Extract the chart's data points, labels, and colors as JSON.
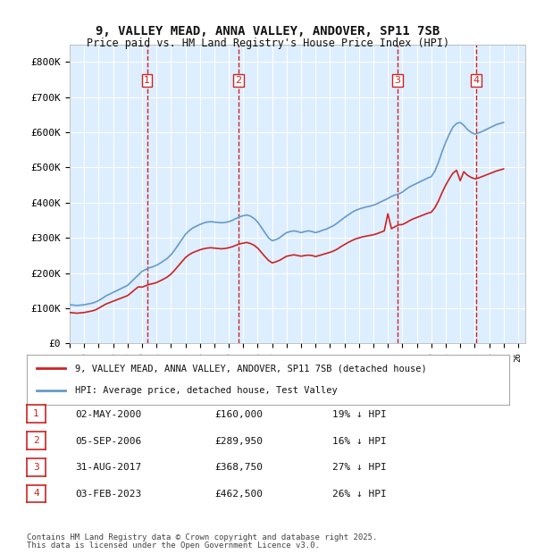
{
  "title": "9, VALLEY MEAD, ANNA VALLEY, ANDOVER, SP11 7SB",
  "subtitle": "Price paid vs. HM Land Registry's House Price Index (HPI)",
  "ylabel": "",
  "background_color": "#ffffff",
  "plot_bg_color": "#ddeeff",
  "grid_color": "#ffffff",
  "hpi_color": "#6699cc",
  "price_color": "#cc2222",
  "ylim": [
    0,
    850000
  ],
  "yticks": [
    0,
    100000,
    200000,
    300000,
    400000,
    500000,
    600000,
    700000,
    800000
  ],
  "ytick_labels": [
    "£0",
    "£100K",
    "£200K",
    "£300K",
    "£400K",
    "£500K",
    "£600K",
    "£700K",
    "£800K"
  ],
  "xlim_start": 1995.0,
  "xlim_end": 2026.5,
  "transactions": [
    {
      "num": 1,
      "date": "02-MAY-2000",
      "price": 160000,
      "pct": "19%",
      "x": 2000.35
    },
    {
      "num": 2,
      "date": "05-SEP-2006",
      "price": 289950,
      "pct": "16%",
      "x": 2006.67
    },
    {
      "num": 3,
      "date": "31-AUG-2017",
      "price": 368750,
      "pct": "27%",
      "x": 2017.66
    },
    {
      "num": 4,
      "date": "03-FEB-2023",
      "price": 462500,
      "pct": "26%",
      "x": 2023.09
    }
  ],
  "legend_line1": "9, VALLEY MEAD, ANNA VALLEY, ANDOVER, SP11 7SB (detached house)",
  "legend_line2": "HPI: Average price, detached house, Test Valley",
  "footer1": "Contains HM Land Registry data © Crown copyright and database right 2025.",
  "footer2": "This data is licensed under the Open Government Licence v3.0.",
  "hpi_years": [
    1995.0,
    1995.25,
    1995.5,
    1995.75,
    1996.0,
    1996.25,
    1996.5,
    1996.75,
    1997.0,
    1997.25,
    1997.5,
    1997.75,
    1998.0,
    1998.25,
    1998.5,
    1998.75,
    1999.0,
    1999.25,
    1999.5,
    1999.75,
    2000.0,
    2000.25,
    2000.5,
    2000.75,
    2001.0,
    2001.25,
    2001.5,
    2001.75,
    2002.0,
    2002.25,
    2002.5,
    2002.75,
    2003.0,
    2003.25,
    2003.5,
    2003.75,
    2004.0,
    2004.25,
    2004.5,
    2004.75,
    2005.0,
    2005.25,
    2005.5,
    2005.75,
    2006.0,
    2006.25,
    2006.5,
    2006.75,
    2007.0,
    2007.25,
    2007.5,
    2007.75,
    2008.0,
    2008.25,
    2008.5,
    2008.75,
    2009.0,
    2009.25,
    2009.5,
    2009.75,
    2010.0,
    2010.25,
    2010.5,
    2010.75,
    2011.0,
    2011.25,
    2011.5,
    2011.75,
    2012.0,
    2012.25,
    2012.5,
    2012.75,
    2013.0,
    2013.25,
    2013.5,
    2013.75,
    2014.0,
    2014.25,
    2014.5,
    2014.75,
    2015.0,
    2015.25,
    2015.5,
    2015.75,
    2016.0,
    2016.25,
    2016.5,
    2016.75,
    2017.0,
    2017.25,
    2017.5,
    2017.75,
    2018.0,
    2018.25,
    2018.5,
    2018.75,
    2019.0,
    2019.25,
    2019.5,
    2019.75,
    2020.0,
    2020.25,
    2020.5,
    2020.75,
    2021.0,
    2021.25,
    2021.5,
    2021.75,
    2022.0,
    2022.25,
    2022.5,
    2022.75,
    2023.0,
    2023.25,
    2023.5,
    2023.75,
    2024.0,
    2024.25,
    2024.5,
    2024.75,
    2025.0
  ],
  "hpi_values": [
    110000,
    109000,
    108000,
    109000,
    110000,
    112000,
    114000,
    117000,
    122000,
    128000,
    135000,
    140000,
    145000,
    150000,
    155000,
    160000,
    165000,
    175000,
    185000,
    195000,
    205000,
    210000,
    215000,
    218000,
    222000,
    228000,
    235000,
    242000,
    252000,
    265000,
    280000,
    295000,
    310000,
    320000,
    328000,
    333000,
    338000,
    342000,
    345000,
    346000,
    345000,
    344000,
    343000,
    344000,
    346000,
    350000,
    355000,
    360000,
    363000,
    365000,
    362000,
    355000,
    345000,
    330000,
    315000,
    300000,
    292000,
    295000,
    300000,
    308000,
    315000,
    318000,
    320000,
    318000,
    315000,
    318000,
    320000,
    318000,
    315000,
    318000,
    322000,
    325000,
    330000,
    335000,
    342000,
    350000,
    358000,
    365000,
    372000,
    378000,
    382000,
    385000,
    388000,
    390000,
    393000,
    397000,
    402000,
    407000,
    412000,
    418000,
    422000,
    425000,
    430000,
    438000,
    445000,
    450000,
    455000,
    460000,
    465000,
    470000,
    474000,
    490000,
    515000,
    545000,
    572000,
    595000,
    615000,
    625000,
    628000,
    620000,
    608000,
    600000,
    595000,
    598000,
    602000,
    607000,
    612000,
    617000,
    622000,
    625000,
    628000
  ],
  "price_years": [
    1995.0,
    1995.25,
    1995.5,
    1995.75,
    1996.0,
    1996.25,
    1996.5,
    1996.75,
    1997.0,
    1997.25,
    1997.5,
    1997.75,
    1998.0,
    1998.25,
    1998.5,
    1998.75,
    1999.0,
    1999.25,
    1999.5,
    1999.75,
    2000.0,
    2000.25,
    2000.5,
    2000.75,
    2001.0,
    2001.25,
    2001.5,
    2001.75,
    2002.0,
    2002.25,
    2002.5,
    2002.75,
    2003.0,
    2003.25,
    2003.5,
    2003.75,
    2004.0,
    2004.25,
    2004.5,
    2004.75,
    2005.0,
    2005.25,
    2005.5,
    2005.75,
    2006.0,
    2006.25,
    2006.5,
    2006.75,
    2007.0,
    2007.25,
    2007.5,
    2007.75,
    2008.0,
    2008.25,
    2008.5,
    2008.75,
    2009.0,
    2009.25,
    2009.5,
    2009.75,
    2010.0,
    2010.25,
    2010.5,
    2010.75,
    2011.0,
    2011.25,
    2011.5,
    2011.75,
    2012.0,
    2012.25,
    2012.5,
    2012.75,
    2013.0,
    2013.25,
    2013.5,
    2013.75,
    2014.0,
    2014.25,
    2014.5,
    2014.75,
    2015.0,
    2015.25,
    2015.5,
    2015.75,
    2016.0,
    2016.25,
    2016.5,
    2016.75,
    2017.0,
    2017.25,
    2017.5,
    2017.75,
    2018.0,
    2018.25,
    2018.5,
    2018.75,
    2019.0,
    2019.25,
    2019.5,
    2019.75,
    2020.0,
    2020.25,
    2020.5,
    2020.75,
    2021.0,
    2021.25,
    2021.5,
    2021.75,
    2022.0,
    2022.25,
    2022.5,
    2022.75,
    2023.0,
    2023.25,
    2023.5,
    2023.75,
    2024.0,
    2024.25,
    2024.5,
    2024.75,
    2025.0
  ],
  "price_values": [
    88000,
    87000,
    86000,
    87000,
    88000,
    90000,
    92000,
    95000,
    100000,
    106000,
    112000,
    116000,
    120000,
    124000,
    128000,
    132000,
    136000,
    144000,
    153000,
    161000,
    160000,
    164000,
    168000,
    170000,
    173000,
    178000,
    183000,
    189000,
    197000,
    208000,
    220000,
    232000,
    244000,
    252000,
    258000,
    262000,
    266000,
    269000,
    271000,
    272000,
    271000,
    270000,
    269000,
    270000,
    272000,
    275000,
    279000,
    283000,
    285000,
    287000,
    284000,
    279000,
    271000,
    259000,
    247000,
    236000,
    229000,
    232000,
    236000,
    242000,
    248000,
    250000,
    252000,
    250000,
    248000,
    250000,
    251000,
    250000,
    247000,
    250000,
    253000,
    256000,
    259000,
    263000,
    268000,
    275000,
    281000,
    287000,
    292000,
    297000,
    300000,
    303000,
    305000,
    307000,
    309000,
    312000,
    316000,
    320000,
    368750,
    326000,
    332000,
    337000,
    338000,
    343000,
    349000,
    354000,
    358000,
    362000,
    366000,
    370000,
    373000,
    386000,
    405000,
    429000,
    450000,
    468000,
    484000,
    492000,
    462500,
    488000,
    478000,
    472000,
    468000,
    470000,
    474000,
    478000,
    482000,
    486000,
    490000,
    493000,
    496000
  ]
}
